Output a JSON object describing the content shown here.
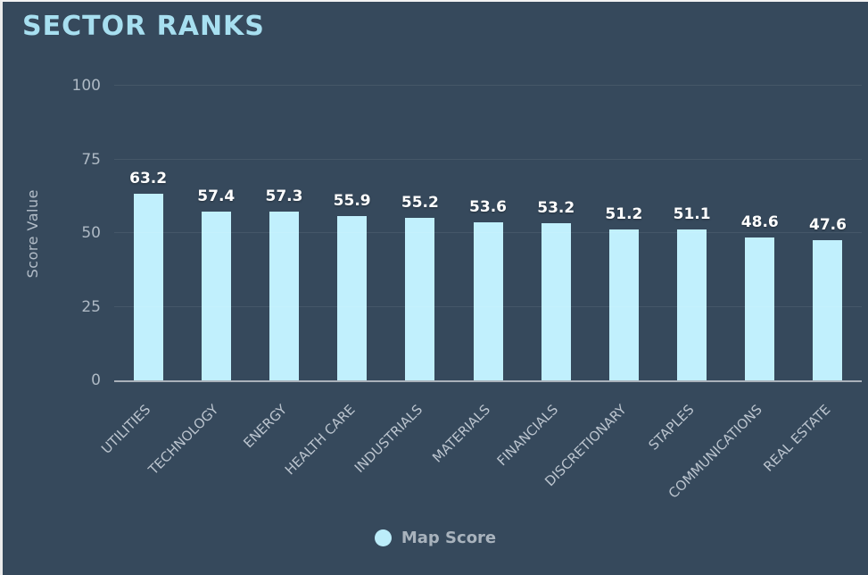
{
  "page": {
    "title": "SECTOR RANKS"
  },
  "chart_data": {
    "type": "bar",
    "title": "SECTOR RANKS",
    "categories": [
      "UTILITIES",
      "TECHNOLOGY",
      "ENERGY",
      "HEALTH CARE",
      "INDUSTRIALS",
      "MATERIALS",
      "FINANCIALS",
      "DISCRETIONARY",
      "STAPLES",
      "COMMUNICATIONS",
      "REAL ESTATE"
    ],
    "series": [
      {
        "name": "Map Score",
        "values": [
          63.2,
          57.4,
          57.3,
          55.9,
          55.2,
          53.6,
          53.2,
          51.2,
          51.1,
          48.6,
          47.6
        ]
      }
    ],
    "xlabel": "",
    "ylabel": "Score Value",
    "ylim": [
      0,
      100
    ],
    "yticks": [
      0,
      25,
      50,
      75,
      100
    ],
    "grid": true,
    "legend_position": "bottom",
    "bar_color": "#C1F0FD",
    "value_label_decimals": 1
  },
  "colors": {
    "background": "#36495C",
    "title_text": "#A7DFF0",
    "bar_fill": "#C1F0FD",
    "legend_swatch": "#BCEDFA",
    "axis_text": "#AEB9C4",
    "x_label_text": "#BCC5CF",
    "value_text": "#FFFFFF",
    "axis_line": "#A9B1BA"
  }
}
